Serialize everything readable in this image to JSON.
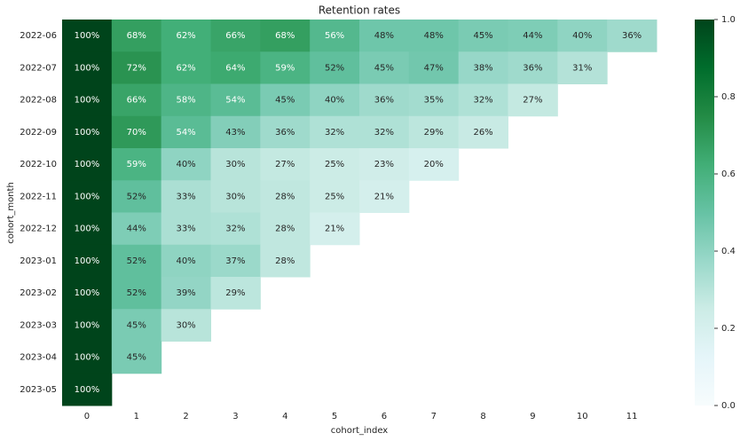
{
  "chart_data": {
    "type": "heatmap",
    "title": "Retention rates",
    "x_label": "cohort_index",
    "y_label": "cohort_month",
    "x": [
      "0",
      "1",
      "2",
      "3",
      "4",
      "5",
      "6",
      "7",
      "8",
      "9",
      "10",
      "11"
    ],
    "categories": [
      "2022-06",
      "2022-07",
      "2022-08",
      "2022-09",
      "2022-10",
      "2022-11",
      "2022-12",
      "2023-01",
      "2023-02",
      "2023-03",
      "2023-04",
      "2023-05"
    ],
    "colormap": "BuGn",
    "clim": [
      0,
      1
    ],
    "cticks": [
      {
        "value": 0,
        "label": "0.0"
      },
      {
        "value": 0.2,
        "label": "0.2"
      },
      {
        "value": 0.4,
        "label": "0.4"
      },
      {
        "value": 0.6,
        "label": "0.6"
      },
      {
        "value": 0.8,
        "label": "0.8"
      },
      {
        "value": 1,
        "label": "1.0"
      }
    ],
    "values": [
      [
        1.0,
        0.68,
        0.62,
        0.66,
        0.68,
        0.56,
        0.48,
        0.48,
        0.45,
        0.44,
        0.4,
        0.36
      ],
      [
        1.0,
        0.72,
        0.62,
        0.64,
        0.59,
        0.52,
        0.45,
        0.47,
        0.38,
        0.36,
        0.31,
        null
      ],
      [
        1.0,
        0.66,
        0.58,
        0.54,
        0.45,
        0.4,
        0.36,
        0.35,
        0.32,
        0.27,
        null,
        null
      ],
      [
        1.0,
        0.7,
        0.54,
        0.43,
        0.36,
        0.32,
        0.32,
        0.29,
        0.26,
        null,
        null,
        null
      ],
      [
        1.0,
        0.59,
        0.4,
        0.3,
        0.27,
        0.25,
        0.23,
        0.2,
        null,
        null,
        null,
        null
      ],
      [
        1.0,
        0.52,
        0.33,
        0.3,
        0.28,
        0.25,
        0.21,
        null,
        null,
        null,
        null,
        null
      ],
      [
        1.0,
        0.44,
        0.33,
        0.32,
        0.28,
        0.21,
        null,
        null,
        null,
        null,
        null,
        null
      ],
      [
        1.0,
        0.52,
        0.4,
        0.37,
        0.28,
        null,
        null,
        null,
        null,
        null,
        null,
        null
      ],
      [
        1.0,
        0.52,
        0.39,
        0.29,
        null,
        null,
        null,
        null,
        null,
        null,
        null,
        null
      ],
      [
        1.0,
        0.45,
        0.3,
        null,
        null,
        null,
        null,
        null,
        null,
        null,
        null,
        null
      ],
      [
        1.0,
        0.45,
        null,
        null,
        null,
        null,
        null,
        null,
        null,
        null,
        null,
        null
      ],
      [
        1.0,
        null,
        null,
        null,
        null,
        null,
        null,
        null,
        null,
        null,
        null,
        null
      ]
    ],
    "value_labels": [
      [
        "100%",
        "68%",
        "62%",
        "66%",
        "68%",
        "56%",
        "48%",
        "48%",
        "45%",
        "44%",
        "40%",
        "36%"
      ],
      [
        "100%",
        "72%",
        "62%",
        "64%",
        "59%",
        "52%",
        "45%",
        "47%",
        "38%",
        "36%",
        "31%",
        null
      ],
      [
        "100%",
        "66%",
        "58%",
        "54%",
        "45%",
        "40%",
        "36%",
        "35%",
        "32%",
        "27%",
        null,
        null
      ],
      [
        "100%",
        "70%",
        "54%",
        "43%",
        "36%",
        "32%",
        "32%",
        "29%",
        "26%",
        null,
        null,
        null
      ],
      [
        "100%",
        "59%",
        "40%",
        "30%",
        "27%",
        "25%",
        "23%",
        "20%",
        null,
        null,
        null,
        null
      ],
      [
        "100%",
        "52%",
        "33%",
        "30%",
        "28%",
        "25%",
        "21%",
        null,
        null,
        null,
        null,
        null
      ],
      [
        "100%",
        "44%",
        "33%",
        "32%",
        "28%",
        "21%",
        null,
        null,
        null,
        null,
        null,
        null
      ],
      [
        "100%",
        "52%",
        "40%",
        "37%",
        "28%",
        null,
        null,
        null,
        null,
        null,
        null,
        null
      ],
      [
        "100%",
        "52%",
        "39%",
        "29%",
        null,
        null,
        null,
        null,
        null,
        null,
        null,
        null
      ],
      [
        "100%",
        "45%",
        "30%",
        null,
        null,
        null,
        null,
        null,
        null,
        null,
        null,
        null
      ],
      [
        "100%",
        "45%",
        null,
        null,
        null,
        null,
        null,
        null,
        null,
        null,
        null,
        null
      ],
      [
        "100%",
        null,
        null,
        null,
        null,
        null,
        null,
        null,
        null,
        null,
        null,
        null
      ]
    ]
  }
}
